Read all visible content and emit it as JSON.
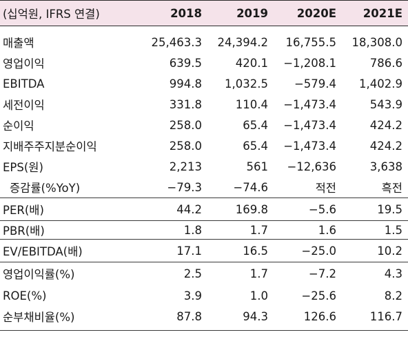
{
  "header": {
    "unit_label": "(십억원, IFRS 연결)",
    "years": [
      "2018",
      "2019",
      "2020E",
      "2021E"
    ]
  },
  "rows": [
    {
      "label": "매출액",
      "values": [
        "25,463.3",
        "24,394.2",
        "16,755.5",
        "18,308.0"
      ]
    },
    {
      "label": "영업이익",
      "values": [
        "639.5",
        "420.1",
        "−1,208.1",
        "786.6"
      ]
    },
    {
      "label": "EBITDA",
      "values": [
        "994.8",
        "1,032.5",
        "−579.4",
        "1,402.9"
      ]
    },
    {
      "label": "세전이익",
      "values": [
        "331.8",
        "110.4",
        "−1,473.4",
        "543.9"
      ]
    },
    {
      "label": "순이익",
      "values": [
        "258.0",
        "65.4",
        "−1,473.4",
        "424.2"
      ]
    },
    {
      "label": "지배주주지분순이익",
      "values": [
        "258.0",
        "65.4",
        "−1,473.4",
        "424.2"
      ]
    },
    {
      "label": "EPS(원)",
      "values": [
        "2,213",
        "561",
        "−12,636",
        "3,638"
      ]
    },
    {
      "label": "증감률(%YoY)",
      "values": [
        "−79.3",
        "−74.6",
        "적전",
        "흑전"
      ]
    },
    {
      "label": "PER(배)",
      "values": [
        "44.2",
        "169.8",
        "−5.6",
        "19.5"
      ]
    },
    {
      "label": "PBR(배)",
      "values": [
        "1.8",
        "1.7",
        "1.6",
        "1.5"
      ]
    },
    {
      "label": "EV/EBITDA(배)",
      "values": [
        "17.1",
        "16.5",
        "−25.0",
        "10.2"
      ]
    },
    {
      "label": "영업이익률(%)",
      "values": [
        "2.5",
        "1.7",
        "−7.2",
        "4.3"
      ]
    },
    {
      "label": "ROE(%)",
      "values": [
        "3.9",
        "1.0",
        "−25.6",
        "8.2"
      ]
    },
    {
      "label": "순부채비율(%)",
      "values": [
        "87.8",
        "94.3",
        "126.6",
        "116.7"
      ]
    }
  ]
}
